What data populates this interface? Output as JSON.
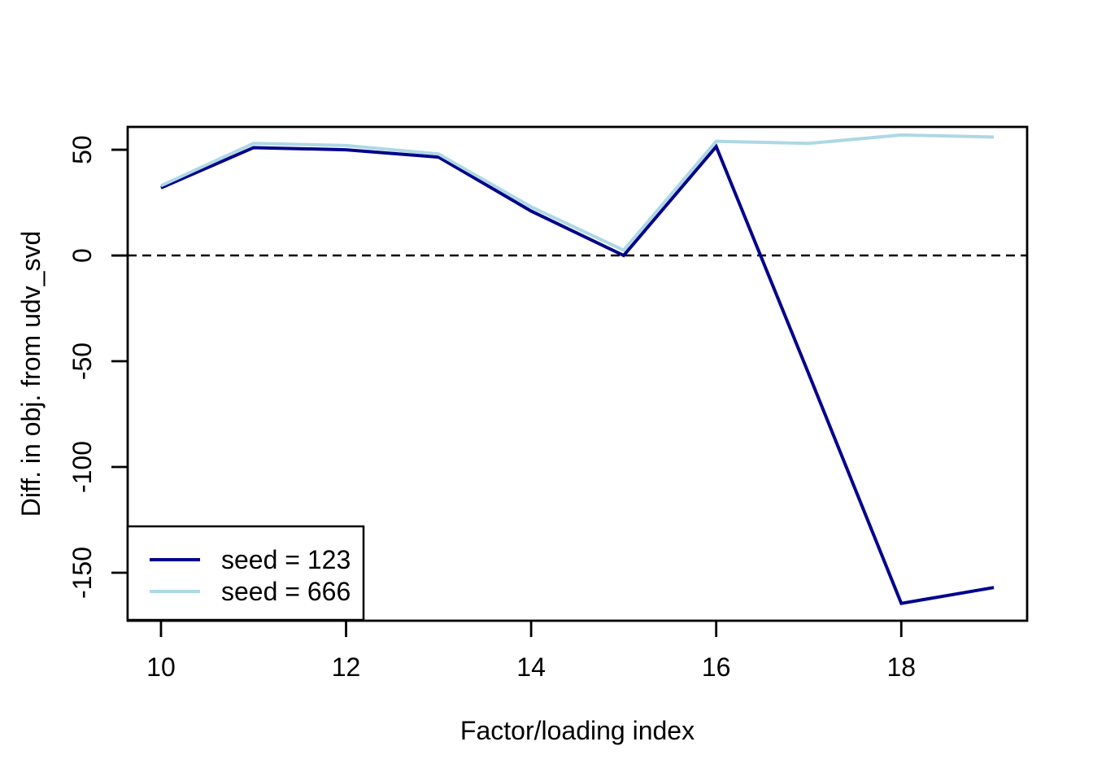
{
  "chart_data": {
    "type": "line",
    "title": "",
    "x": [
      10,
      11,
      12,
      13,
      14,
      15,
      16,
      17,
      18,
      19
    ],
    "series": [
      {
        "name": "seed = 123",
        "color": "#00008B",
        "values": [
          32,
          51,
          50,
          46.5,
          21,
          0,
          51.5,
          -56,
          -164.5,
          -157
        ]
      },
      {
        "name": "seed = 666",
        "color": "#ADD8E6",
        "values": [
          33,
          53,
          52,
          48,
          23,
          2.5,
          54,
          53,
          57,
          56
        ]
      }
    ],
    "xlabel": "Factor/loading index",
    "ylabel": "Diff. in obj. from udv_svd",
    "xticks": [
      10,
      12,
      14,
      16,
      18
    ],
    "yticks": [
      50,
      0,
      -50,
      -100,
      -150
    ],
    "xlim": [
      9.64,
      19.36
    ],
    "ylim": [
      -172.7,
      60.8
    ],
    "reference_line": {
      "y": 0,
      "style": "dashed",
      "color": "#000000"
    },
    "legend": {
      "position": "bottom-left",
      "entries": [
        "seed = 123",
        "seed = 666"
      ]
    },
    "grid": false,
    "axis_color": "#000000",
    "background_color": "#ffffff"
  }
}
